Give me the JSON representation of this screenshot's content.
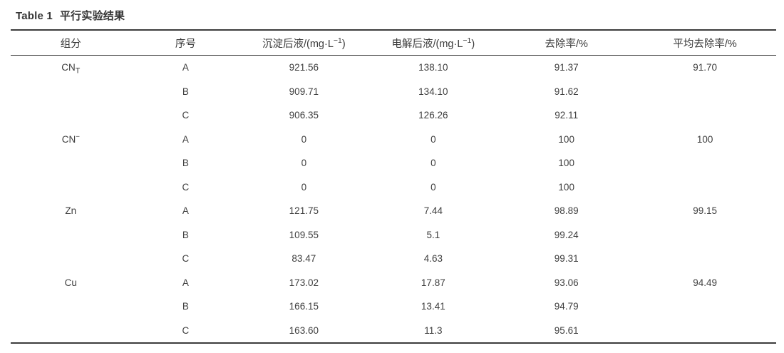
{
  "title": {
    "label": "Table 1",
    "text": "平行实验结果"
  },
  "table": {
    "headers": [
      {
        "text": "组分"
      },
      {
        "text": "序号"
      },
      {
        "prefix": "沉淀后液/(mg·L",
        "sup": "−1",
        "suffix": ")"
      },
      {
        "prefix": "电解后液/(mg·L",
        "sup": "−1",
        "suffix": ")"
      },
      {
        "text": "去除率/%"
      },
      {
        "text": "平均去除率/%"
      }
    ],
    "groups": [
      {
        "component": {
          "base": "CN",
          "sub": "T",
          "sup": ""
        },
        "avg_removal": "91.70",
        "runs": [
          {
            "id": "A",
            "after_precipitation": "921.56",
            "after_electrolysis": "138.10",
            "removal": "91.37"
          },
          {
            "id": "B",
            "after_precipitation": "909.71",
            "after_electrolysis": "134.10",
            "removal": "91.62"
          },
          {
            "id": "C",
            "after_precipitation": "906.35",
            "after_electrolysis": "126.26",
            "removal": "92.11"
          }
        ]
      },
      {
        "component": {
          "base": "CN",
          "sub": "",
          "sup": "−"
        },
        "avg_removal": "100",
        "runs": [
          {
            "id": "A",
            "after_precipitation": "0",
            "after_electrolysis": "0",
            "removal": "100"
          },
          {
            "id": "B",
            "after_precipitation": "0",
            "after_electrolysis": "0",
            "removal": "100"
          },
          {
            "id": "C",
            "after_precipitation": "0",
            "after_electrolysis": "0",
            "removal": "100"
          }
        ]
      },
      {
        "component": {
          "base": "Zn",
          "sub": "",
          "sup": ""
        },
        "avg_removal": "99.15",
        "runs": [
          {
            "id": "A",
            "after_precipitation": "121.75",
            "after_electrolysis": "7.44",
            "removal": "98.89"
          },
          {
            "id": "B",
            "after_precipitation": "109.55",
            "after_electrolysis": "5.1",
            "removal": "99.24"
          },
          {
            "id": "C",
            "after_precipitation": "83.47",
            "after_electrolysis": "4.63",
            "removal": "99.31"
          }
        ]
      },
      {
        "component": {
          "base": "Cu",
          "sub": "",
          "sup": ""
        },
        "avg_removal": "94.49",
        "runs": [
          {
            "id": "A",
            "after_precipitation": "173.02",
            "after_electrolysis": "17.87",
            "removal": "93.06"
          },
          {
            "id": "B",
            "after_precipitation": "166.15",
            "after_electrolysis": "13.41",
            "removal": "94.79"
          },
          {
            "id": "C",
            "after_precipitation": "163.60",
            "after_electrolysis": "11.3",
            "removal": "95.61"
          }
        ]
      }
    ]
  },
  "colors": {
    "rule": "#3c3c3c",
    "text": "#3e3e3e"
  }
}
